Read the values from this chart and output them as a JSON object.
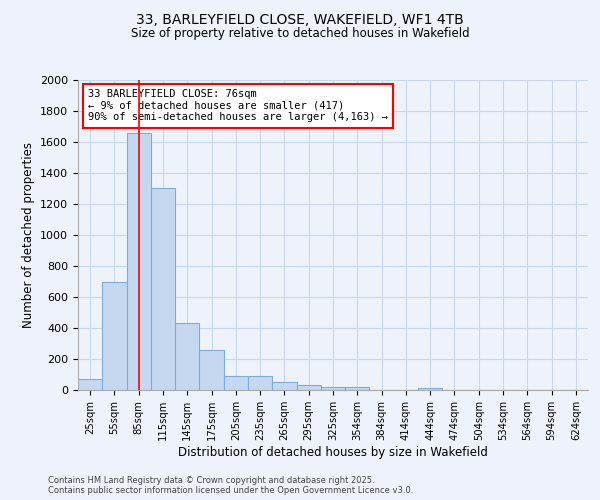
{
  "title_line1": "33, BARLEYFIELD CLOSE, WAKEFIELD, WF1 4TB",
  "title_line2": "Size of property relative to detached houses in Wakefield",
  "xlabel": "Distribution of detached houses by size in Wakefield",
  "ylabel": "Number of detached properties",
  "categories": [
    "25sqm",
    "55sqm",
    "85sqm",
    "115sqm",
    "145sqm",
    "175sqm",
    "205sqm",
    "235sqm",
    "265sqm",
    "295sqm",
    "325sqm",
    "354sqm",
    "384sqm",
    "414sqm",
    "444sqm",
    "474sqm",
    "504sqm",
    "534sqm",
    "564sqm",
    "594sqm",
    "624sqm"
  ],
  "values": [
    70,
    695,
    1655,
    1305,
    435,
    255,
    90,
    90,
    50,
    35,
    20,
    20,
    0,
    0,
    10,
    0,
    0,
    0,
    0,
    0,
    0
  ],
  "bar_color": "#c5d8f0",
  "bar_edge_color": "#7aaddc",
  "ylim": [
    0,
    2000
  ],
  "yticks": [
    0,
    200,
    400,
    600,
    800,
    1000,
    1200,
    1400,
    1600,
    1800,
    2000
  ],
  "red_line_x": 2.0,
  "annotation_text": "33 BARLEYFIELD CLOSE: 76sqm\n← 9% of detached houses are smaller (417)\n90% of semi-detached houses are larger (4,163) →",
  "footer_line1": "Contains HM Land Registry data © Crown copyright and database right 2025.",
  "footer_line2": "Contains public sector information licensed under the Open Government Licence v3.0.",
  "grid_color": "#c8d8ec",
  "bg_color": "#eef3fb"
}
